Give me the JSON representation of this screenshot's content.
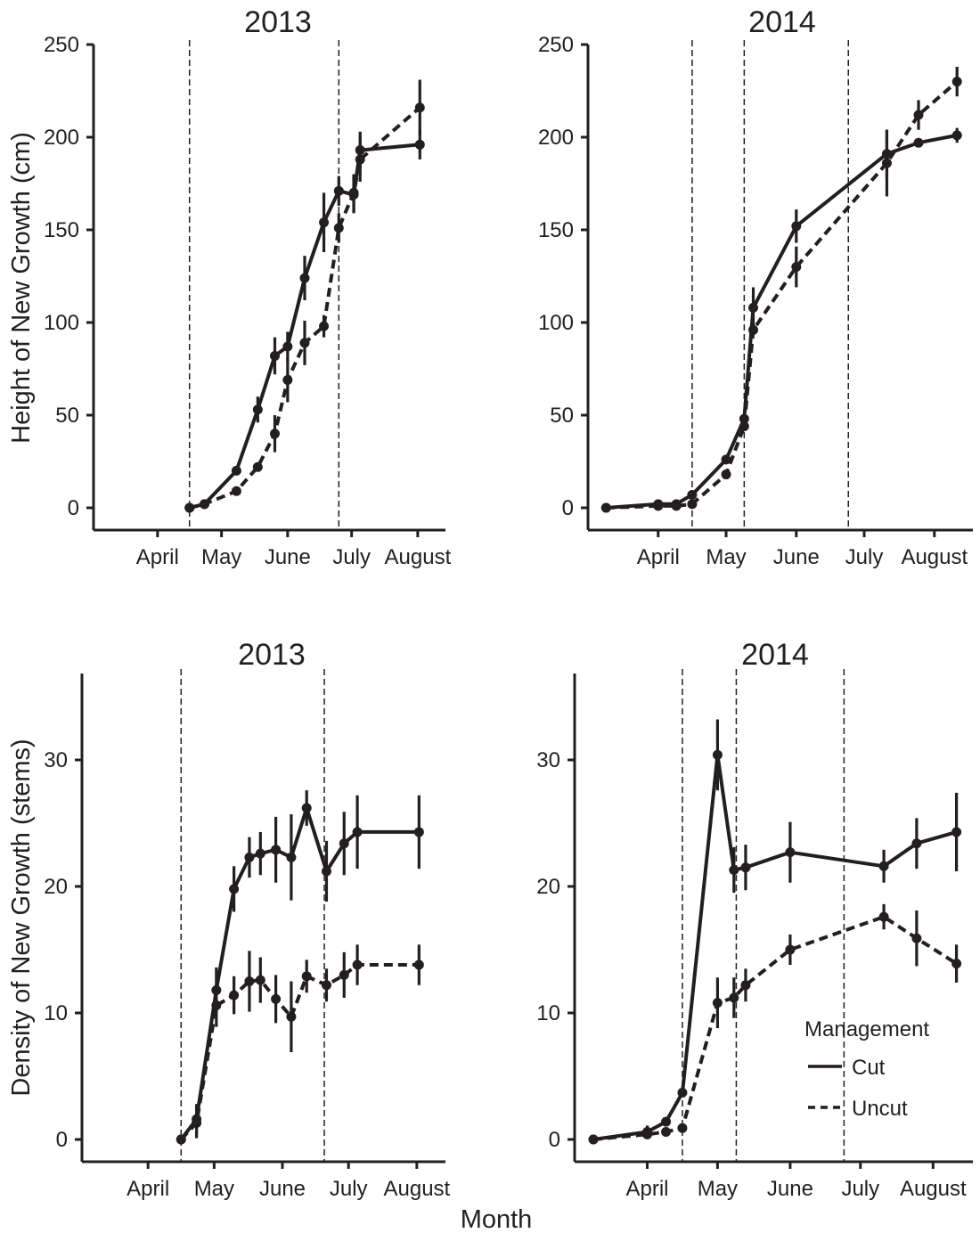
{
  "figure": {
    "xlabel": "Month",
    "ylabels": {
      "height": "Height of New Growth (cm)",
      "density": "Density of New Growth (stems)"
    }
  },
  "legend": {
    "title": "Management",
    "items": [
      {
        "label": "Cut",
        "style": "solid"
      },
      {
        "label": "Uncut",
        "style": "dashed"
      }
    ]
  },
  "chart_data": [
    {
      "type": "line",
      "title": "2013",
      "ylabel": "Height of New Growth (cm)",
      "xlabel": "",
      "x_unit": "day of year",
      "xlim": [
        75,
        240
      ],
      "ylim": [
        -12,
        250
      ],
      "xticks": [
        {
          "label": "April",
          "value": 105
        },
        {
          "label": "May",
          "value": 135
        },
        {
          "label": "June",
          "value": 166
        },
        {
          "label": "July",
          "value": 196
        },
        {
          "label": "August",
          "value": 227
        }
      ],
      "yticks": [
        0,
        50,
        100,
        150,
        200,
        250
      ],
      "vlines": [
        120,
        190
      ],
      "grid": false,
      "series": [
        {
          "name": "Cut",
          "style": "solid",
          "x": [
            120,
            127,
            142,
            152,
            160,
            166,
            174,
            183,
            190,
            197,
            200,
            228
          ],
          "y": [
            0,
            2,
            20,
            53,
            82,
            87,
            124,
            154,
            171,
            169,
            193,
            196
          ],
          "err": [
            0,
            0,
            0,
            7,
            10,
            8,
            12,
            16,
            8,
            10,
            10,
            8
          ]
        },
        {
          "name": "Uncut",
          "style": "dashed",
          "x": [
            120,
            127,
            142,
            152,
            160,
            166,
            174,
            183,
            190,
            197,
            200,
            228
          ],
          "y": [
            0,
            2,
            9,
            22,
            40,
            69,
            89,
            98,
            151,
            170,
            188,
            216
          ],
          "err": [
            0,
            0,
            0,
            0,
            10,
            12,
            12,
            6,
            8,
            10,
            12,
            15
          ]
        }
      ]
    },
    {
      "type": "line",
      "title": "2014",
      "ylabel": "",
      "xlabel": "",
      "x_unit": "day of year",
      "xlim": [
        80,
        250
      ],
      "ylim": [
        -12,
        250
      ],
      "xticks": [
        {
          "label": "April",
          "value": 111
        },
        {
          "label": "May",
          "value": 141
        },
        {
          "label": "June",
          "value": 172
        },
        {
          "label": "July",
          "value": 202
        },
        {
          "label": "August",
          "value": 233
        }
      ],
      "yticks": [
        0,
        50,
        100,
        150,
        200,
        250
      ],
      "vlines": [
        126,
        149,
        195
      ],
      "grid": false,
      "series": [
        {
          "name": "Cut",
          "style": "solid",
          "x": [
            88,
            111,
            119,
            126,
            141,
            149,
            153,
            172,
            212,
            226,
            243
          ],
          "y": [
            0,
            2,
            2,
            7,
            26,
            48,
            108,
            152,
            191,
            197,
            201
          ],
          "err": [
            0,
            0,
            0,
            0,
            0,
            0,
            11,
            9,
            13,
            0,
            4
          ]
        },
        {
          "name": "Uncut",
          "style": "dashed",
          "x": [
            88,
            111,
            119,
            126,
            141,
            149,
            153,
            172,
            212,
            226,
            243
          ],
          "y": [
            0,
            1,
            1,
            2,
            18,
            44,
            96,
            130,
            186,
            212,
            230
          ],
          "err": [
            0,
            0,
            0,
            0,
            0,
            0,
            0,
            11,
            18,
            8,
            8
          ]
        }
      ]
    },
    {
      "type": "line",
      "title": "2013",
      "ylabel": "Density of New Growth (stems)",
      "xlabel": "Month",
      "x_unit": "day of year",
      "xlim": [
        75,
        240
      ],
      "ylim": [
        -1.8,
        36
      ],
      "xticks": [
        {
          "label": "April",
          "value": 105
        },
        {
          "label": "May",
          "value": 135
        },
        {
          "label": "June",
          "value": 166
        },
        {
          "label": "July",
          "value": 196
        },
        {
          "label": "August",
          "value": 227
        }
      ],
      "yticks": [
        0,
        10,
        20,
        30
      ],
      "vlines": [
        120,
        185
      ],
      "grid": false,
      "series": [
        {
          "name": "Cut",
          "style": "solid",
          "x": [
            120,
            127,
            136,
            144,
            151,
            156,
            163,
            170,
            177,
            186,
            194,
            200,
            228
          ],
          "y": [
            0,
            1.6,
            11.8,
            19.8,
            22.3,
            22.6,
            22.9,
            22.3,
            26.2,
            21.2,
            23.4,
            24.3,
            24.3
          ],
          "err": [
            0,
            1.2,
            1.8,
            1.8,
            1.6,
            1.7,
            2.6,
            3.4,
            1.4,
            2.4,
            2.5,
            2.9,
            2.9
          ]
        },
        {
          "name": "Uncut",
          "style": "dashed",
          "x": [
            120,
            127,
            136,
            144,
            151,
            156,
            163,
            170,
            177,
            186,
            194,
            200,
            228
          ],
          "y": [
            0,
            1.3,
            10.6,
            11.4,
            12.5,
            12.6,
            11.1,
            9.7,
            12.9,
            12.2,
            13.0,
            13.8,
            13.8
          ],
          "err": [
            0,
            1.2,
            1.7,
            1.5,
            2.4,
            1.8,
            1.9,
            2.8,
            1.3,
            1.3,
            1.8,
            1.6,
            1.6
          ]
        }
      ]
    },
    {
      "type": "line",
      "title": "2014",
      "ylabel": "",
      "xlabel": "",
      "x_unit": "day of year",
      "xlim": [
        80,
        250
      ],
      "ylim": [
        -1.8,
        36
      ],
      "xticks": [
        {
          "label": "April",
          "value": 111
        },
        {
          "label": "May",
          "value": 141
        },
        {
          "label": "June",
          "value": 172
        },
        {
          "label": "July",
          "value": 202
        },
        {
          "label": "August",
          "value": 233
        }
      ],
      "yticks": [
        0,
        10,
        20,
        30
      ],
      "vlines": [
        126,
        149,
        195
      ],
      "grid": false,
      "legend_position": "bottom-right",
      "series": [
        {
          "name": "Cut",
          "style": "solid",
          "x": [
            88,
            111,
            119,
            126,
            141,
            148,
            153,
            172,
            212,
            226,
            243
          ],
          "y": [
            0,
            0.6,
            1.4,
            3.7,
            30.4,
            21.3,
            21.5,
            22.7,
            21.6,
            23.4,
            24.3
          ],
          "err": [
            0,
            0.5,
            0,
            0,
            2.8,
            1.8,
            1.8,
            2.4,
            1.3,
            2.0,
            3.1
          ]
        },
        {
          "name": "Uncut",
          "style": "dashed",
          "x": [
            88,
            111,
            119,
            126,
            141,
            148,
            153,
            172,
            212,
            226,
            243
          ],
          "y": [
            0,
            0.4,
            0.6,
            0.9,
            10.8,
            11.2,
            12.2,
            15.0,
            17.6,
            15.9,
            13.9
          ],
          "err": [
            0,
            0,
            0,
            0,
            2.0,
            1.6,
            1.3,
            1.2,
            1.0,
            2.2,
            1.5
          ]
        }
      ]
    }
  ]
}
